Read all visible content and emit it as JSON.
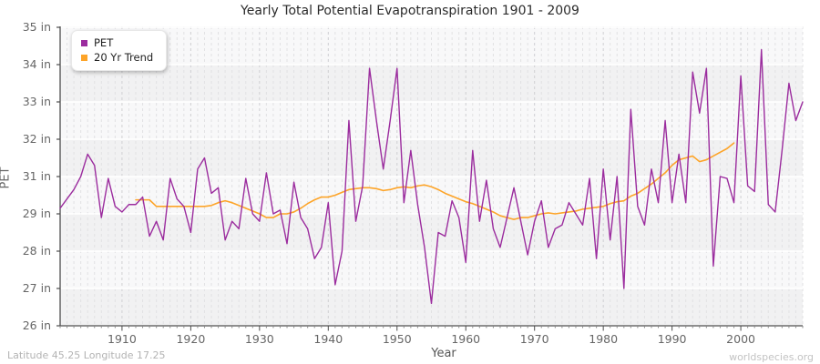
{
  "title": "Yearly Total Potential Evapotranspiration 1901 - 2009",
  "chart_data": {
    "type": "line",
    "title": "Yearly Total Potential Evapotranspiration 1901 - 2009",
    "xlabel": "Year",
    "ylabel": "PET",
    "unit": "in",
    "x_start_year": 1901,
    "x_end_year": 2009,
    "grid": "on",
    "legend_position": "top-left",
    "y_tick_labels_bottom_to_top": [
      "26 in",
      "27 in",
      "28 in",
      "29 in",
      "31 in",
      "32 in",
      "33 in",
      "34 in",
      "35 in"
    ],
    "y_tick_values_bottom_to_top": [
      26,
      27,
      28,
      29,
      31,
      32,
      33,
      34,
      35
    ],
    "x_tick_years": [
      1910,
      1920,
      1930,
      1940,
      1950,
      1960,
      1970,
      1980,
      1990,
      2000
    ],
    "series": [
      {
        "name": "PET",
        "color": "#9B2C9E",
        "start_year": 1901,
        "values": [
          29.3,
          29.8,
          30.3,
          31.0,
          31.6,
          31.3,
          28.9,
          30.9,
          29.4,
          29.1,
          29.5,
          29.5,
          29.9,
          28.4,
          28.8,
          28.3,
          30.9,
          29.8,
          29.4,
          28.5,
          31.2,
          31.5,
          30.1,
          30.4,
          28.3,
          28.8,
          28.6,
          30.9,
          29.0,
          28.8,
          31.1,
          29.0,
          29.2,
          28.2,
          30.7,
          28.9,
          28.6,
          27.8,
          28.1,
          29.6,
          27.1,
          28.0,
          32.5,
          28.8,
          30.5,
          33.9,
          32.5,
          31.2,
          32.5,
          33.9,
          29.6,
          31.7,
          29.5,
          28.1,
          26.6,
          28.5,
          28.4,
          29.7,
          28.9,
          27.7,
          31.7,
          28.8,
          30.8,
          28.6,
          28.1,
          28.9,
          30.4,
          28.8,
          27.9,
          28.8,
          29.7,
          28.1,
          28.6,
          28.7,
          29.6,
          29.0,
          28.7,
          30.9,
          27.8,
          31.2,
          28.3,
          31.0,
          27.0,
          32.8,
          29.4,
          28.7,
          31.2,
          29.6,
          32.5,
          29.6,
          31.6,
          29.6,
          33.8,
          32.7,
          33.9,
          27.6,
          31.0,
          30.9,
          29.6,
          33.7,
          30.5,
          30.2,
          34.4,
          29.5,
          29.1,
          31.7,
          33.5,
          32.5,
          33.0
        ]
      },
      {
        "name": "20 Yr Trend",
        "color": "#FDA428",
        "start_year": 1912,
        "values": [
          29.75,
          29.75,
          29.75,
          29.4,
          29.4,
          29.4,
          29.4,
          29.4,
          29.4,
          29.4,
          29.4,
          29.45,
          29.6,
          29.7,
          29.6,
          29.45,
          29.3,
          29.15,
          29.0,
          28.9,
          28.9,
          29.0,
          29.0,
          29.1,
          29.3,
          29.55,
          29.75,
          29.9,
          29.9,
          30.0,
          30.15,
          30.3,
          30.35,
          30.4,
          30.4,
          30.35,
          30.25,
          30.3,
          30.4,
          30.45,
          30.4,
          30.5,
          30.55,
          30.45,
          30.3,
          30.1,
          29.95,
          29.8,
          29.65,
          29.55,
          29.4,
          29.25,
          29.1,
          28.95,
          28.9,
          28.85,
          28.9,
          28.9,
          28.95,
          29.0,
          29.05,
          29.0,
          29.05,
          29.1,
          29.15,
          29.25,
          29.3,
          29.35,
          29.4,
          29.55,
          29.65,
          29.7,
          29.95,
          30.1,
          30.35,
          30.6,
          30.9,
          31.1,
          31.3,
          31.45,
          31.5,
          31.55,
          31.4,
          31.45,
          31.55,
          31.65,
          31.75,
          31.9
        ]
      }
    ]
  },
  "legend": {
    "items": [
      "PET",
      "20 Yr Trend"
    ]
  },
  "footer": {
    "left": "Latitude 45.25 Longitude 17.25",
    "right": "worldspecies.org"
  },
  "colors": {
    "pet": "#9B2C9E",
    "trend": "#FDA428",
    "plot_bg_dark": "#f1f1f2",
    "plot_bg_light": "#f8f8f9",
    "grid_vertical": "#e1e1e3",
    "grid_horizontal": "#ffffff",
    "axis": "#4d4d4d",
    "tick_text": "#666666"
  }
}
